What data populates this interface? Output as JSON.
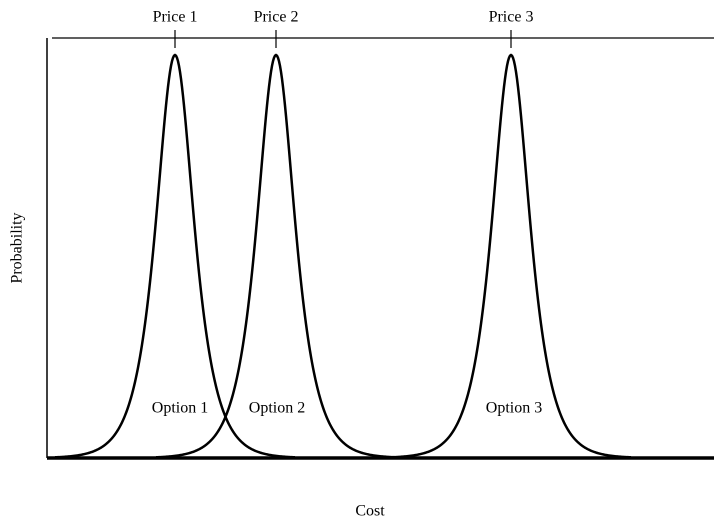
{
  "axes": {
    "y_label": "Probability",
    "x_label": "Cost"
  },
  "prices": [
    "Price 1",
    "Price 2",
    "Price 3"
  ],
  "options": [
    "Option 1",
    "Option 2",
    "Option 3"
  ]
}
